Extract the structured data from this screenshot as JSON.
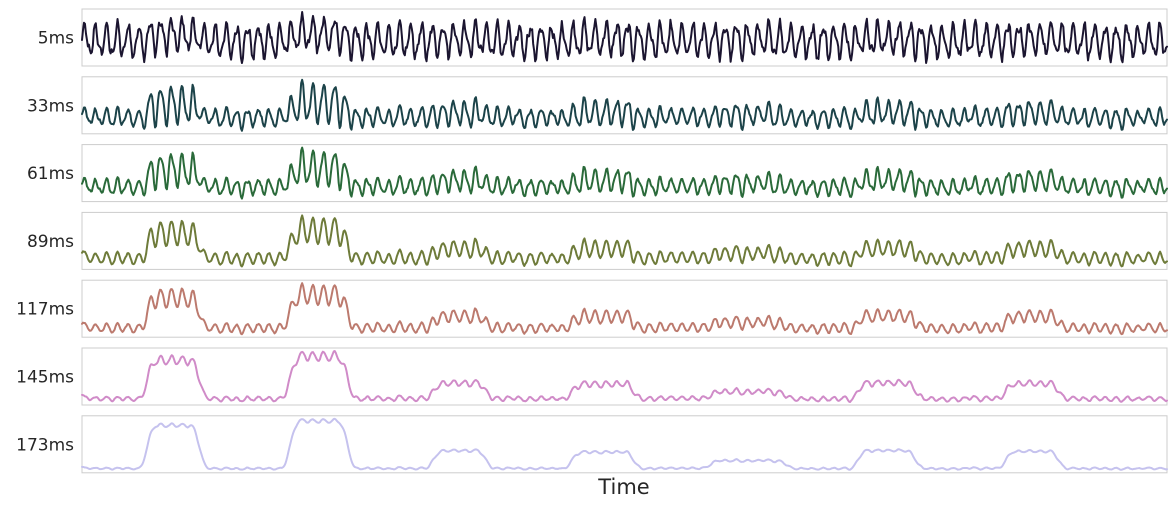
{
  "chart_data": {
    "type": "line",
    "xlabel": "Time",
    "ylabel": "",
    "title": "",
    "grid": false,
    "legend": "none",
    "x_ticks_shown": false,
    "y_ticks_shown": false,
    "series": [
      {
        "name": "5ms",
        "color": "#1b1530"
      },
      {
        "name": "33ms",
        "color": "#1c4349"
      },
      {
        "name": "61ms",
        "color": "#2a6a3a"
      },
      {
        "name": "89ms",
        "color": "#6e7b3a"
      },
      {
        "name": "117ms",
        "color": "#bc7a6e"
      },
      {
        "name": "145ms",
        "color": "#d08bc8"
      },
      {
        "name": "173ms",
        "color": "#c5c2ee"
      }
    ],
    "signal": {
      "oscillation_period": 11,
      "bursts": [
        {
          "start": 60,
          "end": 125,
          "level": 1.0
        },
        {
          "start": 205,
          "end": 275,
          "level": 1.1
        },
        {
          "start": 350,
          "end": 415,
          "level": 0.42
        },
        {
          "start": 490,
          "end": 565,
          "level": 0.38
        },
        {
          "start": 630,
          "end": 720,
          "level": 0.18
        },
        {
          "start": 780,
          "end": 850,
          "level": 0.42
        },
        {
          "start": 930,
          "end": 995,
          "level": 0.4
        }
      ]
    }
  }
}
